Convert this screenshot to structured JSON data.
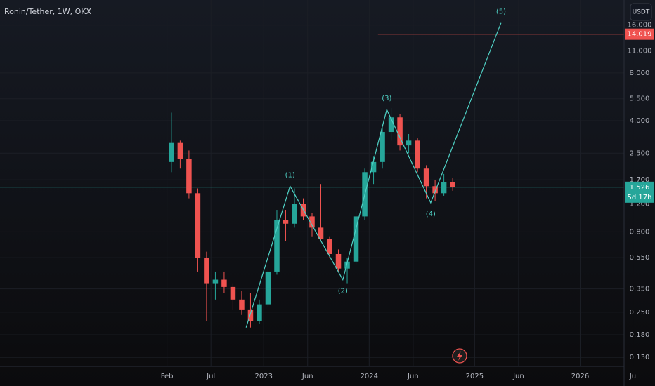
{
  "chart_data": {
    "type": "candlestick",
    "title": "Ronin/Tether, 1W, OKX",
    "currency": "USDT",
    "log_scale": true,
    "grid": true,
    "up_color": "#26a69a",
    "down_color": "#ef5350",
    "x": [
      "2022-02",
      "2022-03",
      "2022-04",
      "2022-05",
      "2022-06",
      "2022-07",
      "2022-08",
      "2022-09",
      "2022-10",
      "2022-11",
      "2022-12",
      "2023-01",
      "2023-02",
      "2023-03",
      "2023-04",
      "2023-05",
      "2023-06",
      "2023-07",
      "2023-08",
      "2023-09",
      "2023-10",
      "2023-11",
      "2023-12",
      "2024-01",
      "2024-02",
      "2024-03",
      "2024-04",
      "2024-05",
      "2024-06",
      "2024-07",
      "2024-08",
      "2024-09",
      "2024-10"
    ],
    "open": [
      2.2,
      2.9,
      2.3,
      1.4,
      0.55,
      0.38,
      0.4,
      0.36,
      0.3,
      0.26,
      0.22,
      0.28,
      0.45,
      0.95,
      0.9,
      1.2,
      1.0,
      0.85,
      0.72,
      0.58,
      0.47,
      0.52,
      1.0,
      1.9,
      2.2,
      3.4,
      4.2,
      2.8,
      3.0,
      2.0,
      1.55,
      1.4,
      1.65
    ],
    "high": [
      4.5,
      3.0,
      2.6,
      1.5,
      0.6,
      0.45,
      0.45,
      0.38,
      0.34,
      0.33,
      0.3,
      0.5,
      1.1,
      1.1,
      1.5,
      1.3,
      1.05,
      1.6,
      0.75,
      0.62,
      0.55,
      1.1,
      2.0,
      2.4,
      3.6,
      4.8,
      4.4,
      3.3,
      3.1,
      2.1,
      1.7,
      1.85,
      1.75
    ],
    "low": [
      1.9,
      2.0,
      1.3,
      0.45,
      0.22,
      0.3,
      0.33,
      0.26,
      0.24,
      0.2,
      0.21,
      0.27,
      0.43,
      0.7,
      0.85,
      0.95,
      0.75,
      0.7,
      0.55,
      0.45,
      0.38,
      0.5,
      0.95,
      1.6,
      2.0,
      3.0,
      2.6,
      2.5,
      1.9,
      1.3,
      1.25,
      1.35,
      1.45
    ],
    "close": [
      2.9,
      2.3,
      1.4,
      0.55,
      0.38,
      0.4,
      0.36,
      0.3,
      0.26,
      0.22,
      0.28,
      0.45,
      0.95,
      0.9,
      1.2,
      1.0,
      0.85,
      0.72,
      0.58,
      0.47,
      0.52,
      1.0,
      1.9,
      2.2,
      3.4,
      4.2,
      2.8,
      3.0,
      2.0,
      1.55,
      1.4,
      1.65,
      1.526
    ],
    "wave": {
      "color": "#4fd1c5",
      "x": [
        "2022-11",
        "2023-04",
        "2023-10",
        "2024-03",
        "2024-08",
        "2025-04"
      ],
      "values": [
        0.2,
        1.55,
        0.4,
        4.7,
        1.22,
        16.5
      ],
      "labels": [
        null,
        "(1)",
        "(2)",
        "(3)",
        "(4)",
        "(5)"
      ]
    },
    "target": {
      "value": 14.019,
      "label": "14.019",
      "x_start": "2024-02",
      "color": "#ef5350"
    },
    "last_price": {
      "value": 1.526,
      "label": "1.526",
      "countdown": "5d 17h",
      "color": "#26a69a"
    },
    "xlim": [
      "2020-07",
      "2026-06"
    ],
    "xticks": [
      {
        "value": "2022-02",
        "label": "Feb"
      },
      {
        "value": "2022-07",
        "label": "Jul"
      },
      {
        "value": "2023-01",
        "label": "2023"
      },
      {
        "value": "2023-06",
        "label": "Jun"
      },
      {
        "value": "2024-01",
        "label": "2024"
      },
      {
        "value": "2024-06",
        "label": "Jun"
      },
      {
        "value": "2025-01",
        "label": "2025"
      },
      {
        "value": "2025-06",
        "label": "Jun"
      },
      {
        "value": "2026-01",
        "label": "2026"
      },
      {
        "value": "2026-07",
        "label": "Ju"
      }
    ],
    "ylim": [
      0.114,
      23
    ],
    "yticks": [
      {
        "value": 16,
        "label": "16.000"
      },
      {
        "value": 11,
        "label": "11.000"
      },
      {
        "value": 8,
        "label": "8.000"
      },
      {
        "value": 5.5,
        "label": "5.500"
      },
      {
        "value": 4,
        "label": "4.000"
      },
      {
        "value": 2.5,
        "label": "2.500"
      },
      {
        "value": 1.7,
        "label": "1.700"
      },
      {
        "value": 1.2,
        "label": "1.200"
      },
      {
        "value": 0.8,
        "label": "0.800"
      },
      {
        "value": 0.55,
        "label": "0.550"
      },
      {
        "value": 0.35,
        "label": "0.350"
      },
      {
        "value": 0.25,
        "label": "0.250"
      },
      {
        "value": 0.18,
        "label": "0.180"
      },
      {
        "value": 0.13,
        "label": "0.130"
      }
    ]
  }
}
